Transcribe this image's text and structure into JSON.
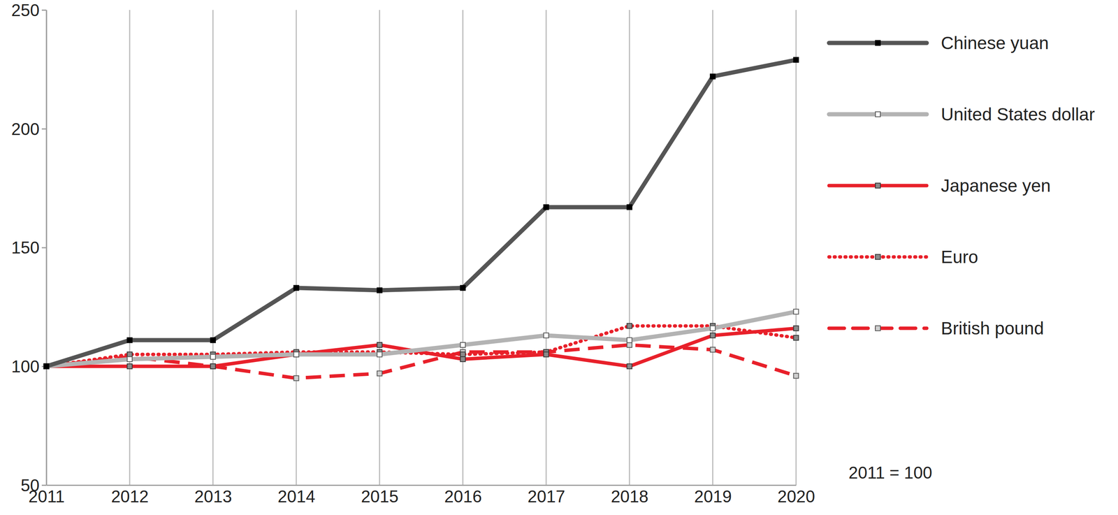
{
  "chart_data": {
    "type": "line",
    "x": [
      2011,
      2012,
      2013,
      2014,
      2015,
      2016,
      2017,
      2018,
      2019,
      2020
    ],
    "xlim": [
      2011,
      2020
    ],
    "xticks": [
      2011,
      2012,
      2013,
      2014,
      2015,
      2016,
      2017,
      2018,
      2019,
      2020
    ],
    "ylim": [
      50,
      250
    ],
    "yticks": [
      50,
      100,
      150,
      200,
      250
    ],
    "grid": "x",
    "legend": "right",
    "annotation": "2011 = 100",
    "series": [
      {
        "name": "Chinese yuan",
        "color": "#555555",
        "marker": "square",
        "line_style": "solid",
        "values": [
          100,
          111,
          111,
          133,
          132,
          133,
          167,
          167,
          222,
          229
        ]
      },
      {
        "name": "United States dollar",
        "color": "#b3b3b3",
        "marker": "square",
        "line_style": "solid",
        "values": [
          100,
          103,
          104,
          105,
          105,
          109,
          113,
          111,
          116,
          123
        ]
      },
      {
        "name": "Japanese yen",
        "color": "#e8202a",
        "marker": "square",
        "line_style": "solid",
        "values": [
          100,
          100,
          100,
          105,
          109,
          103,
          105,
          100,
          113,
          116
        ]
      },
      {
        "name": "Euro",
        "color": "#e8202a",
        "marker": "square",
        "line_style": "dotted",
        "values": [
          100,
          105,
          105,
          106,
          106,
          105,
          106,
          117,
          117,
          112
        ]
      },
      {
        "name": "British pound",
        "color": "#e8202a",
        "marker": "square",
        "line_style": "dashed",
        "values": [
          100,
          104,
          100,
          95,
          97,
          106,
          106,
          109,
          107,
          96
        ]
      }
    ]
  }
}
